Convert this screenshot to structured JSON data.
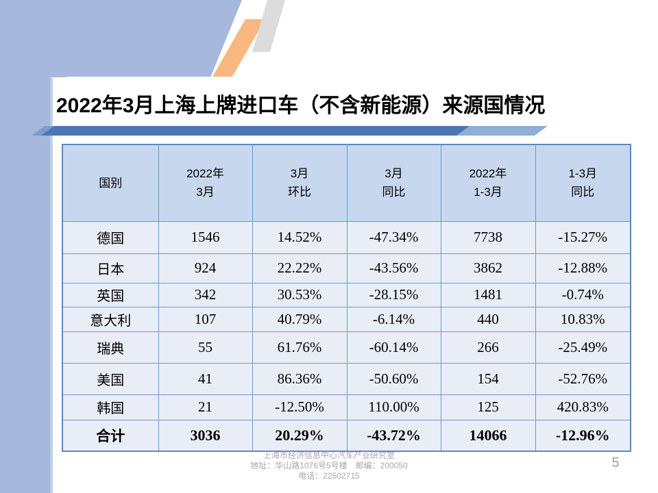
{
  "slide": {
    "title": "2022年3月上海上牌进口车（不含新能源）来源国情况",
    "page_number": "5",
    "footer_lines": [
      "上海市经济信息中心汽车产业研究室",
      "地址：华山路1076号5号楼　邮编：200050",
      "电话：22502715"
    ],
    "colors": {
      "background_band": "#a6b8db",
      "accent_bar": "#4a76b5",
      "accent_bar_light": "#8fafd7",
      "accent_bar_tip": "#7d9cce",
      "stripe_orange": "#f9b87f",
      "stripe_gray": "#dcdcdc",
      "table_border": "#6e96ca",
      "table_outer_border": "#5d88c0",
      "table_header_fill": "#c7d8ee",
      "table_row_fill": "#e9edf6",
      "footer_gray": "#a6a6a6",
      "pagenum_gray": "#9e9e9e"
    }
  },
  "chart_data": {
    "type": "table",
    "title": "2022年3月上海上牌进口车（不含新能源）来源国情况",
    "columns": [
      [
        "国别"
      ],
      [
        "2022年",
        "3月"
      ],
      [
        "3月",
        "环比"
      ],
      [
        "3月",
        "同比"
      ],
      [
        "2022年",
        "1-3月"
      ],
      [
        "1-3月",
        "同比"
      ]
    ],
    "rows": [
      {
        "bold": false,
        "cells": [
          "德国",
          "1546",
          "14.52%",
          "-47.34%",
          "7738",
          "-15.27%"
        ]
      },
      {
        "bold": false,
        "cells": [
          "日本",
          "924",
          "22.22%",
          "-43.56%",
          "3862",
          "-12.88%"
        ]
      },
      {
        "bold": false,
        "cells": [
          "英国",
          "342",
          "30.53%",
          "-28.15%",
          "1481",
          "-0.74%"
        ]
      },
      {
        "bold": false,
        "cells": [
          "意大利",
          "107",
          "40.79%",
          "-6.14%",
          "440",
          "10.83%"
        ]
      },
      {
        "bold": false,
        "cells": [
          "瑞典",
          "55",
          "61.76%",
          "-60.14%",
          "266",
          "-25.49%"
        ]
      },
      {
        "bold": false,
        "cells": [
          "美国",
          "41",
          "86.36%",
          "-50.60%",
          "154",
          "-52.76%"
        ]
      },
      {
        "bold": false,
        "cells": [
          "韩国",
          "21",
          "-12.50%",
          "110.00%",
          "125",
          "420.83%"
        ]
      },
      {
        "bold": true,
        "cells": [
          "合计",
          "3036",
          "20.29%",
          "-43.72%",
          "14066",
          "-12.96%"
        ]
      }
    ]
  }
}
